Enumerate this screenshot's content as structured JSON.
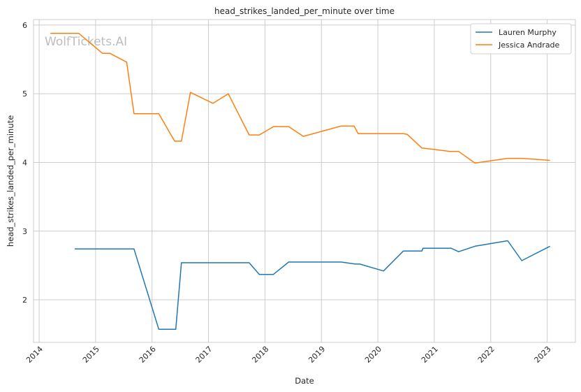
{
  "chart_data": {
    "type": "line",
    "title": "head_strikes_landed_per_minute over time",
    "xlabel": "Date",
    "ylabel": "head_strikes_landed_per_minute",
    "watermark": "WolfTickets.AI",
    "xlim": [
      2013.9,
      2023.5
    ],
    "ylim": [
      1.38,
      6.08
    ],
    "x_ticks": [
      "2014",
      "2015",
      "2016",
      "2017",
      "2018",
      "2019",
      "2020",
      "2021",
      "2022",
      "2023"
    ],
    "y_ticks": [
      "2",
      "3",
      "4",
      "5",
      "6"
    ],
    "grid": true,
    "legend_position": "top-right",
    "series": [
      {
        "name": "Lauren Murphy",
        "color": "#1f77b4",
        "x": [
          2014.63,
          2015.68,
          2016.12,
          2016.42,
          2016.52,
          2017.72,
          2017.9,
          2018.15,
          2018.42,
          2019.35,
          2019.6,
          2019.68,
          2020.1,
          2020.45,
          2020.78,
          2020.8,
          2021.3,
          2021.43,
          2021.72,
          2022.3,
          2022.55,
          2023.05
        ],
        "y": [
          2.74,
          2.74,
          1.57,
          1.57,
          2.54,
          2.54,
          2.37,
          2.37,
          2.55,
          2.55,
          2.52,
          2.52,
          2.42,
          2.71,
          2.71,
          2.75,
          2.75,
          2.7,
          2.78,
          2.86,
          2.57,
          2.78
        ]
      },
      {
        "name": "Jessica Andrade",
        "color": "#ff7f0e",
        "x": [
          2014.2,
          2014.7,
          2015.12,
          2015.25,
          2015.55,
          2015.68,
          2016.12,
          2016.4,
          2016.52,
          2016.68,
          2017.08,
          2017.35,
          2017.72,
          2017.9,
          2018.15,
          2018.42,
          2018.68,
          2019.35,
          2019.58,
          2019.65,
          2020.45,
          2020.52,
          2020.78,
          2021.28,
          2021.43,
          2021.72,
          2022.3,
          2022.55,
          2023.05
        ],
        "y": [
          5.88,
          5.88,
          5.59,
          5.59,
          5.46,
          4.71,
          4.71,
          4.31,
          4.31,
          5.02,
          4.86,
          5.0,
          4.4,
          4.4,
          4.52,
          4.52,
          4.38,
          4.53,
          4.53,
          4.42,
          4.42,
          4.41,
          4.21,
          4.16,
          4.16,
          3.99,
          4.06,
          4.06,
          4.03
        ]
      }
    ]
  }
}
